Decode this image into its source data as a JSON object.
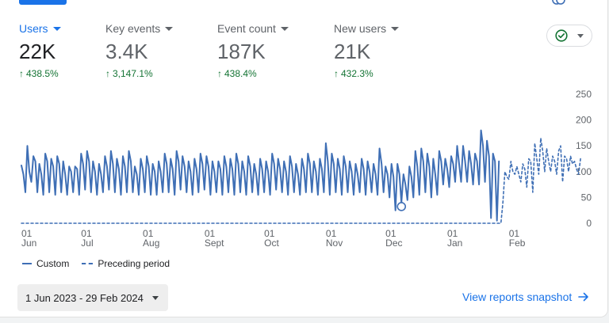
{
  "metrics": [
    {
      "label": "Users",
      "value": "22K",
      "change": "438.5%"
    },
    {
      "label": "Key events",
      "value": "3.4K",
      "change": "3,147.1%"
    },
    {
      "label": "Event count",
      "value": "187K",
      "change": "438.4%"
    },
    {
      "label": "New users",
      "value": "21K",
      "change": "432.3%"
    }
  ],
  "status_icon": "check-circle-icon",
  "footer": {
    "date_range": "1 Jun 2023 - 29 Feb 2024",
    "view_link": "View reports snapshot"
  },
  "colors": {
    "accent": "#1a73e8",
    "series": "#3f6fb5",
    "positive": "#137333"
  },
  "chart_data": {
    "type": "line",
    "ylim": [
      0,
      250
    ],
    "yticks": [
      0,
      50,
      100,
      150,
      200,
      250
    ],
    "x_start_day": 0,
    "x_end_day": 273,
    "xticks": [
      {
        "day": 0,
        "day_label": "01",
        "month": "Jun"
      },
      {
        "day": 30,
        "day_label": "01",
        "month": "Jul"
      },
      {
        "day": 61,
        "day_label": "01",
        "month": "Aug"
      },
      {
        "day": 92,
        "day_label": "01",
        "month": "Sept"
      },
      {
        "day": 122,
        "day_label": "01",
        "month": "Oct"
      },
      {
        "day": 153,
        "day_label": "01",
        "month": "Nov"
      },
      {
        "day": 183,
        "day_label": "01",
        "month": "Dec"
      },
      {
        "day": 214,
        "day_label": "01",
        "month": "Jan"
      },
      {
        "day": 245,
        "day_label": "01",
        "month": "Feb"
      }
    ],
    "legend": [
      "Custom",
      "Preceding period"
    ],
    "series": [
      {
        "name": "Custom",
        "style": "solid",
        "values": [
          112,
          95,
          60,
          150,
          100,
          80,
          130,
          120,
          60,
          115,
          95,
          55,
          135,
          120,
          60,
          125,
          110,
          55,
          130,
          115,
          60,
          120,
          95,
          55,
          110,
          100,
          60,
          110,
          105,
          55,
          135,
          115,
          65,
          140,
          120,
          60,
          120,
          100,
          55,
          115,
          95,
          60,
          130,
          110,
          65,
          140,
          115,
          60,
          125,
          105,
          55,
          130,
          110,
          60,
          140,
          120,
          60,
          110,
          95,
          55,
          125,
          105,
          60,
          130,
          110,
          55,
          115,
          100,
          55,
          120,
          100,
          60,
          135,
          115,
          60,
          125,
          105,
          55,
          140,
          120,
          65,
          130,
          110,
          60,
          120,
          100,
          55,
          125,
          105,
          60,
          135,
          115,
          65,
          130,
          110,
          55,
          120,
          100,
          60,
          120,
          105,
          55,
          130,
          110,
          60,
          125,
          105,
          55,
          135,
          115,
          60,
          120,
          100,
          55,
          130,
          110,
          60,
          115,
          95,
          55,
          125,
          105,
          60,
          120,
          100,
          55,
          135,
          115,
          65,
          125,
          105,
          60,
          120,
          100,
          55,
          130,
          110,
          60,
          115,
          95,
          55,
          125,
          105,
          60,
          135,
          115,
          60,
          120,
          100,
          55,
          125,
          105,
          60,
          155,
          120,
          55,
          135,
          115,
          60,
          125,
          105,
          55,
          130,
          110,
          60,
          120,
          100,
          55,
          115,
          95,
          60,
          125,
          105,
          55,
          120,
          100,
          60,
          115,
          95,
          55,
          145,
          115,
          60,
          110,
          95,
          50,
          115,
          90,
          25,
          115,
          95,
          40,
          95,
          75,
          45,
          110,
          90,
          50,
          140,
          110,
          55,
          145,
          120,
          60,
          135,
          110,
          50,
          125,
          95,
          55,
          140,
          120,
          75,
          125,
          105,
          70,
          130,
          115,
          80,
          150,
          115,
          80,
          150,
          120,
          80,
          140,
          115,
          75,
          135,
          120,
          75,
          180,
          150,
          80,
          160,
          130,
          10,
          135,
          120,
          5,
          120
        ],
        "markers": [
          191,
          269,
          271
        ]
      },
      {
        "name": "Preceding period",
        "style": "dashed",
        "values": [
          0,
          0,
          0,
          0,
          0,
          0,
          0,
          0,
          0,
          0,
          0,
          0,
          0,
          0,
          0,
          0,
          0,
          0,
          0,
          0,
          0,
          0,
          0,
          0,
          0,
          0,
          0,
          0,
          0,
          0,
          0,
          0,
          0,
          0,
          0,
          0,
          0,
          0,
          0,
          0,
          0,
          0,
          0,
          0,
          0,
          0,
          0,
          0,
          0,
          0,
          0,
          0,
          0,
          0,
          0,
          0,
          0,
          0,
          0,
          0,
          0,
          0,
          0,
          0,
          0,
          0,
          0,
          0,
          0,
          0,
          0,
          0,
          0,
          0,
          0,
          0,
          0,
          0,
          0,
          0,
          0,
          0,
          0,
          0,
          0,
          0,
          0,
          0,
          0,
          0,
          0,
          0,
          0,
          0,
          0,
          0,
          0,
          0,
          0,
          0,
          0,
          0,
          0,
          0,
          0,
          0,
          0,
          0,
          0,
          0,
          0,
          0,
          0,
          0,
          0,
          0,
          0,
          0,
          0,
          0,
          0,
          0,
          0,
          0,
          0,
          0,
          0,
          0,
          0,
          0,
          0,
          0,
          0,
          0,
          0,
          0,
          0,
          0,
          0,
          0,
          0,
          0,
          0,
          0,
          0,
          0,
          0,
          0,
          0,
          0,
          0,
          0,
          0,
          0,
          0,
          0,
          0,
          0,
          0,
          0,
          0,
          0,
          0,
          0,
          0,
          0,
          0,
          0,
          0,
          0,
          0,
          0,
          0,
          0,
          0,
          0,
          0,
          0,
          0,
          0,
          0,
          0,
          0,
          0,
          0,
          0,
          0,
          0,
          0,
          0,
          0,
          0,
          0,
          0,
          0,
          0,
          0,
          0,
          0,
          0,
          0,
          0,
          0,
          0,
          0,
          0,
          0,
          0,
          0,
          0,
          0,
          0,
          0,
          0,
          0,
          0,
          0,
          0,
          0,
          0,
          0,
          0,
          0,
          0,
          0,
          0,
          0,
          0,
          0,
          0,
          0,
          0,
          0,
          0,
          0,
          0,
          0,
          0,
          0,
          0,
          0,
          0,
          40,
          100,
          90,
          85,
          120,
          100,
          95,
          110,
          95,
          80,
          115,
          105,
          70,
          125,
          120,
          60,
          155,
          125,
          95,
          165,
          140,
          100,
          145,
          120,
          100,
          130,
          120,
          95,
          140,
          150,
          80,
          130,
          125,
          100,
          130,
          115,
          120,
          105,
          95,
          125
        ]
      }
    ]
  }
}
